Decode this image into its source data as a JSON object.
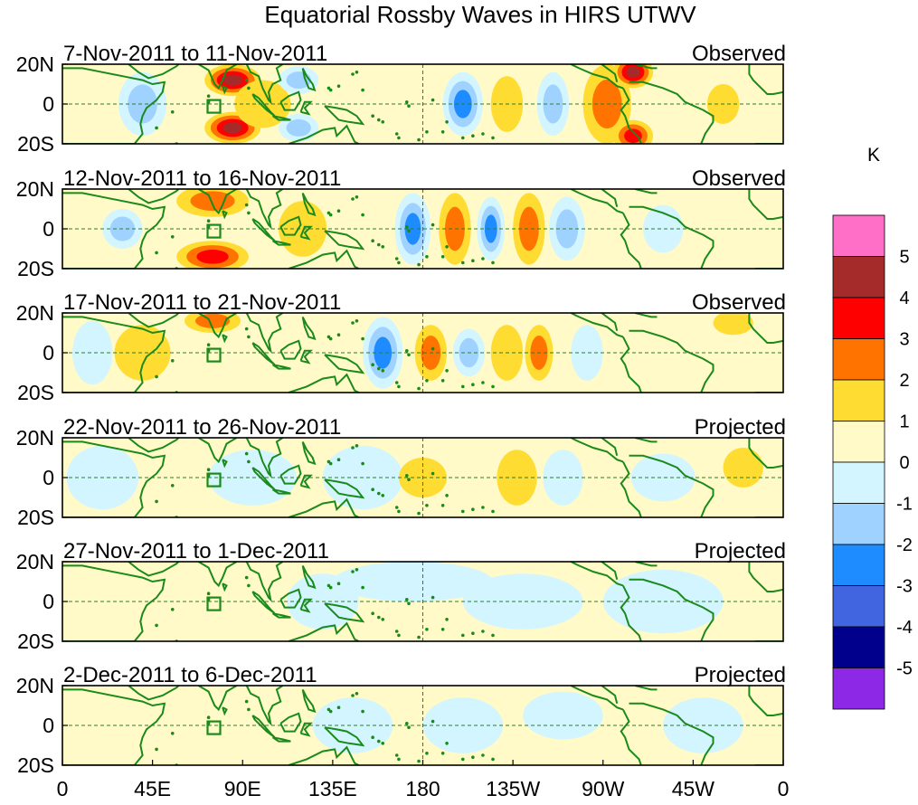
{
  "title": "Equatorial Rossby Waves in HIRS UTWV",
  "units": "K",
  "lat_labels": [
    "20N",
    "0",
    "20S"
  ],
  "lon_labels": [
    "0",
    "45E",
    "90E",
    "135E",
    "180",
    "135W",
    "90W",
    "45W",
    "0"
  ],
  "colorbar": {
    "labels": [
      "5",
      "4",
      "3",
      "2",
      "1",
      "0",
      "-1",
      "-2",
      "-3",
      "-4",
      "-5"
    ],
    "colors": [
      "#ff6ec7",
      "#a52a2a",
      "#ff0000",
      "#ff7400",
      "#ffdc32",
      "#fffac8",
      "#d2f5ff",
      "#a0d2ff",
      "#1e8cff",
      "#4164e1",
      "#00008c",
      "#8c28e6"
    ]
  },
  "colors": {
    "coast": "#1a8a1a",
    "guide": "#2e7d2e",
    "zero": "#fffac8"
  },
  "panels": [
    {
      "period": "7-Nov-2011 to 11-Nov-2011",
      "status": "Observed",
      "blobs": [
        {
          "lon": 85,
          "lat": 12,
          "rl": 14,
          "rt": 8,
          "v": 4
        },
        {
          "lon": 85,
          "lat": -12,
          "rl": 14,
          "rt": 8,
          "v": 4
        },
        {
          "lon": 100,
          "lat": 0,
          "rl": 14,
          "rt": 12,
          "v": 1
        },
        {
          "lon": 40,
          "lat": 0,
          "rl": 12,
          "rt": 16,
          "v": -2
        },
        {
          "lon": 118,
          "lat": 12,
          "rl": 10,
          "rt": 7,
          "v": -2
        },
        {
          "lon": 118,
          "lat": -12,
          "rl": 10,
          "rt": 7,
          "v": -2
        },
        {
          "lon": 200,
          "lat": 0,
          "rl": 10,
          "rt": 16,
          "v": -3
        },
        {
          "lon": 222,
          "lat": 0,
          "rl": 8,
          "rt": 14,
          "v": 1
        },
        {
          "lon": 245,
          "lat": 0,
          "rl": 8,
          "rt": 16,
          "v": -2
        },
        {
          "lon": 272,
          "lat": 0,
          "rl": 12,
          "rt": 20,
          "v": 2
        },
        {
          "lon": 285,
          "lat": 16,
          "rl": 10,
          "rt": 8,
          "v": 4
        },
        {
          "lon": 285,
          "lat": -16,
          "rl": 10,
          "rt": 8,
          "v": 3
        },
        {
          "lon": 330,
          "lat": 0,
          "rl": 8,
          "rt": 10,
          "v": 1
        }
      ]
    },
    {
      "period": "12-Nov-2011 to 16-Nov-2011",
      "status": "Observed",
      "blobs": [
        {
          "lon": 75,
          "lat": 14,
          "rl": 18,
          "rt": 8,
          "v": 2
        },
        {
          "lon": 75,
          "lat": -14,
          "rl": 18,
          "rt": 8,
          "v": 3
        },
        {
          "lon": 30,
          "lat": 0,
          "rl": 10,
          "rt": 10,
          "v": -2
        },
        {
          "lon": 120,
          "lat": 0,
          "rl": 12,
          "rt": 14,
          "v": 1
        },
        {
          "lon": 175,
          "lat": 0,
          "rl": 9,
          "rt": 18,
          "v": -3
        },
        {
          "lon": 196,
          "lat": 0,
          "rl": 8,
          "rt": 18,
          "v": 2
        },
        {
          "lon": 214,
          "lat": 0,
          "rl": 7,
          "rt": 16,
          "v": -3
        },
        {
          "lon": 233,
          "lat": 0,
          "rl": 8,
          "rt": 18,
          "v": 2
        },
        {
          "lon": 252,
          "lat": 0,
          "rl": 9,
          "rt": 16,
          "v": -2
        },
        {
          "lon": 300,
          "lat": 0,
          "rl": 10,
          "rt": 12,
          "v": -1
        }
      ]
    },
    {
      "period": "17-Nov-2011 to 21-Nov-2011",
      "status": "Observed",
      "blobs": [
        {
          "lon": 75,
          "lat": 16,
          "rl": 14,
          "rt": 6,
          "v": 2
        },
        {
          "lon": 40,
          "lat": 0,
          "rl": 14,
          "rt": 14,
          "v": 1
        },
        {
          "lon": 15,
          "lat": 0,
          "rl": 10,
          "rt": 16,
          "v": -1
        },
        {
          "lon": 160,
          "lat": 0,
          "rl": 10,
          "rt": 18,
          "v": -3
        },
        {
          "lon": 184,
          "lat": 0,
          "rl": 8,
          "rt": 14,
          "v": 2
        },
        {
          "lon": 203,
          "lat": 0,
          "rl": 8,
          "rt": 12,
          "v": -2
        },
        {
          "lon": 222,
          "lat": 0,
          "rl": 8,
          "rt": 14,
          "v": 1
        },
        {
          "lon": 238,
          "lat": 0,
          "rl": 7,
          "rt": 14,
          "v": 2
        },
        {
          "lon": 262,
          "lat": 0,
          "rl": 8,
          "rt": 14,
          "v": -1
        },
        {
          "lon": 335,
          "lat": 15,
          "rl": 10,
          "rt": 6,
          "v": 1
        }
      ]
    },
    {
      "period": "22-Nov-2011 to 26-Nov-2011",
      "status": "Projected",
      "blobs": [
        {
          "lon": 20,
          "lat": 0,
          "rl": 18,
          "rt": 16,
          "v": -1
        },
        {
          "lon": 95,
          "lat": 0,
          "rl": 22,
          "rt": 14,
          "v": -1
        },
        {
          "lon": 150,
          "lat": 0,
          "rl": 20,
          "rt": 16,
          "v": -1
        },
        {
          "lon": 180,
          "lat": 0,
          "rl": 12,
          "rt": 10,
          "v": 1
        },
        {
          "lon": 227,
          "lat": 0,
          "rl": 10,
          "rt": 14,
          "v": 1
        },
        {
          "lon": 250,
          "lat": 0,
          "rl": 10,
          "rt": 14,
          "v": -1
        },
        {
          "lon": 300,
          "lat": 0,
          "rl": 16,
          "rt": 12,
          "v": -1
        },
        {
          "lon": 340,
          "lat": 5,
          "rl": 10,
          "rt": 10,
          "v": 1
        }
      ]
    },
    {
      "period": "27-Nov-2011 to 1-Dec-2011",
      "status": "Projected",
      "blobs": [
        {
          "lon": 175,
          "lat": 10,
          "rl": 40,
          "rt": 10,
          "v": -1
        },
        {
          "lon": 230,
          "lat": 0,
          "rl": 30,
          "rt": 14,
          "v": -1
        },
        {
          "lon": 300,
          "lat": 0,
          "rl": 30,
          "rt": 16,
          "v": -1
        },
        {
          "lon": 130,
          "lat": 0,
          "rl": 18,
          "rt": 14,
          "v": -1
        }
      ]
    },
    {
      "period": "2-Dec-2011 to 6-Dec-2011",
      "status": "Projected",
      "blobs": [
        {
          "lon": 145,
          "lat": 0,
          "rl": 20,
          "rt": 14,
          "v": -1
        },
        {
          "lon": 200,
          "lat": 0,
          "rl": 20,
          "rt": 14,
          "v": -1
        },
        {
          "lon": 250,
          "lat": 5,
          "rl": 20,
          "rt": 12,
          "v": -1
        },
        {
          "lon": 320,
          "lat": 0,
          "rl": 20,
          "rt": 14,
          "v": -1
        }
      ]
    }
  ]
}
